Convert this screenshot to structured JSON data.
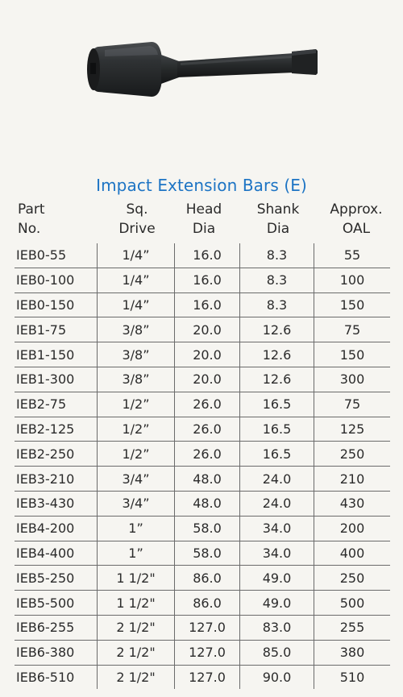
{
  "title": "Impact Extension Bars (E)",
  "photo_icon": "impact-extension-bar-tool",
  "colors": {
    "title": "#1d74c4",
    "tool": "#2a2c2d",
    "rules": "#6b6b6b"
  },
  "headers": {
    "part": [
      "Part",
      "No."
    ],
    "drive": [
      "Sq.",
      "Drive"
    ],
    "head": [
      "Head",
      "Dia"
    ],
    "shank": [
      "Shank",
      "Dia"
    ],
    "oal": [
      "Approx.",
      "OAL"
    ]
  },
  "rows": [
    {
      "part": "IEB0-55",
      "drive": "1/4”",
      "head": "16.0",
      "shank": "8.3",
      "oal": "55"
    },
    {
      "part": "IEB0-100",
      "drive": "1/4”",
      "head": "16.0",
      "shank": "8.3",
      "oal": "100"
    },
    {
      "part": "IEB0-150",
      "drive": "1/4”",
      "head": "16.0",
      "shank": "8.3",
      "oal": "150"
    },
    {
      "part": "IEB1-75",
      "drive": "3/8”",
      "head": "20.0",
      "shank": "12.6",
      "oal": "75"
    },
    {
      "part": "IEB1-150",
      "drive": "3/8”",
      "head": "20.0",
      "shank": "12.6",
      "oal": "150"
    },
    {
      "part": "IEB1-300",
      "drive": "3/8”",
      "head": "20.0",
      "shank": "12.6",
      "oal": "300"
    },
    {
      "part": "IEB2-75",
      "drive": "1/2”",
      "head": "26.0",
      "shank": "16.5",
      "oal": "75"
    },
    {
      "part": "IEB2-125",
      "drive": "1/2”",
      "head": "26.0",
      "shank": "16.5",
      "oal": "125"
    },
    {
      "part": "IEB2-250",
      "drive": "1/2”",
      "head": "26.0",
      "shank": "16.5",
      "oal": "250"
    },
    {
      "part": "IEB3-210",
      "drive": "3/4”",
      "head": "48.0",
      "shank": "24.0",
      "oal": "210"
    },
    {
      "part": "IEB3-430",
      "drive": "3/4”",
      "head": "48.0",
      "shank": "24.0",
      "oal": "430"
    },
    {
      "part": "IEB4-200",
      "drive": "1”",
      "head": "58.0",
      "shank": "34.0",
      "oal": "200"
    },
    {
      "part": "IEB4-400",
      "drive": "1”",
      "head": "58.0",
      "shank": "34.0",
      "oal": "400"
    },
    {
      "part": "IEB5-250",
      "drive": "1  1/2\"",
      "head": "86.0",
      "shank": "49.0",
      "oal": "250"
    },
    {
      "part": "IEB5-500",
      "drive": "1  1/2\"",
      "head": "86.0",
      "shank": "49.0",
      "oal": "500"
    },
    {
      "part": "IEB6-255",
      "drive": "2  1/2\"",
      "head": "127.0",
      "shank": "83.0",
      "oal": "255"
    },
    {
      "part": "IEB6-380",
      "drive": "2  1/2\"",
      "head": "127.0",
      "shank": "85.0",
      "oal": "380"
    },
    {
      "part": "IEB6-510",
      "drive": "2  1/2\"",
      "head": "127.0",
      "shank": "90.0",
      "oal": "510"
    }
  ]
}
